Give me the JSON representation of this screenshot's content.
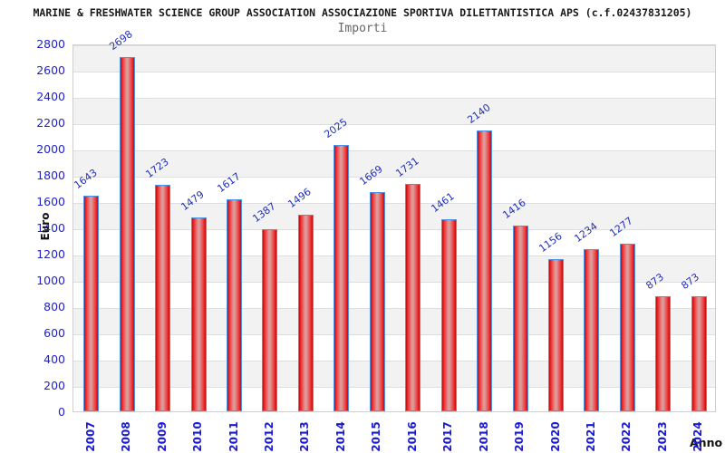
{
  "header": {
    "title": "MARINE & FRESHWATER SCIENCE GROUP ASSOCIATION ASSOCIAZIONE SPORTIVA DILETTANTISTICA APS (c.f.02437831205)",
    "subtitle": "Importi"
  },
  "chart_data": {
    "type": "bar",
    "title": "MARINE & FRESHWATER SCIENCE GROUP ASSOCIATION ASSOCIAZIONE SPORTIVA DILETTANTISTICA APS (c.f.02437831205)",
    "subtitle": "Importi",
    "categories": [
      "2007",
      "2008",
      "2009",
      "2010",
      "2011",
      "2012",
      "2013",
      "2014",
      "2015",
      "2016",
      "2017",
      "2018",
      "2019",
      "2020",
      "2021",
      "2022",
      "2023",
      "2024"
    ],
    "values": [
      1643,
      2698,
      1723,
      1479,
      1617,
      1387,
      1496,
      2025,
      1669,
      1731,
      1461,
      2140,
      1416,
      1156,
      1234,
      1277,
      873,
      873
    ],
    "xlabel": "Anno",
    "ylabel": "Euro",
    "ylim": [
      0,
      2800
    ],
    "ytick_step": 200,
    "grid": true,
    "legend": "none",
    "colors": {
      "bar_fill_bright": "#ee2222",
      "bar_fill_dark": "#b01010",
      "bar_fill_center": "#dd9a9a",
      "bar_border": "#4d94e8",
      "tick_label_blue": "#2222cc",
      "value_label_blue": "#2230b8",
      "band_gray": "#f2f2f2",
      "grid_line": "#dedede",
      "title_color": "#1a1a1a",
      "subtitle_color": "#666666",
      "axis_title_color": "#111111"
    }
  }
}
